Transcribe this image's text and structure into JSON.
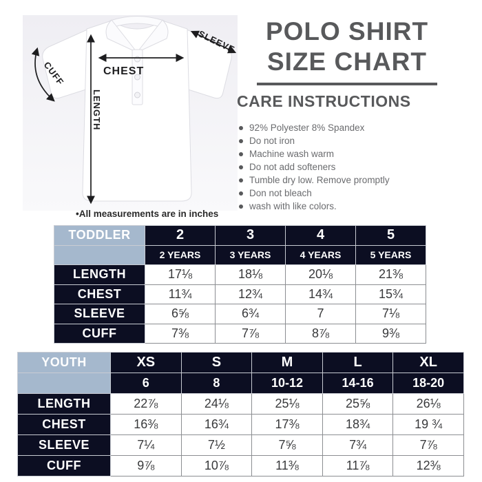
{
  "header": {
    "title_line1": "POLO SHIRT",
    "title_line2": "SIZE CHART"
  },
  "care": {
    "heading": "CARE INSTRUCTIONS",
    "items": [
      "92% Polyester 8% Spandex",
      "Do not iron",
      "Machine wash warm",
      "Do not add softeners",
      "Tumble dry low. Remove promptly",
      "Don not bleach",
      "wash with like colors."
    ]
  },
  "illustration": {
    "labels": {
      "chest": "CHEST",
      "length": "LENGTH",
      "sleeve": "SLEEVE",
      "cuff": "CUFF"
    },
    "note": "•All measurements are in inches"
  },
  "colors": {
    "navy": "#0c0e22",
    "light_blue": "#a5b8cd",
    "title_gray": "#58595b",
    "body_text_gray": "#6a6b6e",
    "arrow_black": "#1d1d1f"
  },
  "tables": {
    "toddler": {
      "group_label": "TODDLER",
      "size_row": [
        "2",
        "3",
        "4",
        "5"
      ],
      "sub_row": [
        "2 YEARS",
        "3 YEARS",
        "4 YEARS",
        "5 YEARS"
      ],
      "rows": [
        {
          "label": "LENGTH",
          "values": [
            "17⅛",
            "18⅛",
            "20⅛",
            "21⅜"
          ]
        },
        {
          "label": "CHEST",
          "values": [
            "11¾",
            "12¾",
            "14¾",
            "15¾"
          ]
        },
        {
          "label": "SLEEVE",
          "values": [
            "6⅝",
            "6¾",
            "7",
            "7⅛"
          ]
        },
        {
          "label": "CUFF",
          "values": [
            "7⅜",
            "7⅞",
            "8⅞",
            "9⅜"
          ]
        }
      ]
    },
    "youth": {
      "group_label": "YOUTH",
      "size_row": [
        "XS",
        "S",
        "M",
        "L",
        "XL"
      ],
      "sub_row": [
        "6",
        "8",
        "10-12",
        "14-16",
        "18-20"
      ],
      "rows": [
        {
          "label": "LENGTH",
          "values": [
            "22⅞",
            "24⅛",
            "25⅛",
            "25⅝",
            "26⅛"
          ]
        },
        {
          "label": "CHEST",
          "values": [
            "16⅜",
            "16¾",
            "17⅜",
            "18¾",
            "19 ¾"
          ]
        },
        {
          "label": "SLEEVE",
          "values": [
            "7¼",
            "7½",
            "7⅝",
            "7¾",
            "7⅞"
          ]
        },
        {
          "label": "CUFF",
          "values": [
            "9⅞",
            "10⅞",
            "11⅜",
            "11⅞",
            "12⅜"
          ]
        }
      ]
    }
  }
}
